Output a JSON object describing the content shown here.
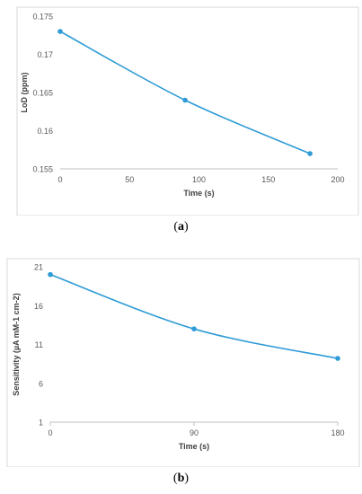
{
  "chart_data": [
    {
      "type": "line",
      "x": [
        0,
        90,
        180
      ],
      "values": [
        0.173,
        0.164,
        0.157
      ],
      "xlabel": "Time (s)",
      "ylabel": "LoD (ppm)",
      "xlim": [
        0,
        200
      ],
      "ylim": [
        0.155,
        0.175
      ],
      "xticks": [
        "0",
        "50",
        "100",
        "150",
        "200"
      ],
      "yticks": [
        "0.155",
        "0.16",
        "0.165",
        "0.17",
        "0.175"
      ],
      "xtick_values": [
        0,
        50,
        100,
        150,
        200
      ],
      "ytick_values": [
        0.155,
        0.16,
        0.165,
        0.17,
        0.175
      ],
      "grid": false,
      "legend": "none",
      "color": "#2E9BD6",
      "caption": {
        "open": "(",
        "letter": "a",
        "close": ")"
      }
    },
    {
      "type": "line",
      "x": [
        0,
        90,
        180
      ],
      "values": [
        20,
        13,
        9.2
      ],
      "xlabel": "Time (s)",
      "ylabel": "Sensitivity (µA mM-1 cm-2)",
      "xlim": [
        0,
        180
      ],
      "ylim": [
        1,
        21
      ],
      "xticks": [
        "0",
        "90",
        "180"
      ],
      "yticks": [
        "1",
        "6",
        "11",
        "16",
        "21"
      ],
      "xtick_values": [
        0,
        90,
        180
      ],
      "ytick_values": [
        1,
        6,
        11,
        16,
        21
      ],
      "grid": false,
      "legend": "none",
      "color": "#2E9BD6",
      "caption": {
        "open": "(",
        "letter": "b",
        "close": ")"
      }
    }
  ]
}
